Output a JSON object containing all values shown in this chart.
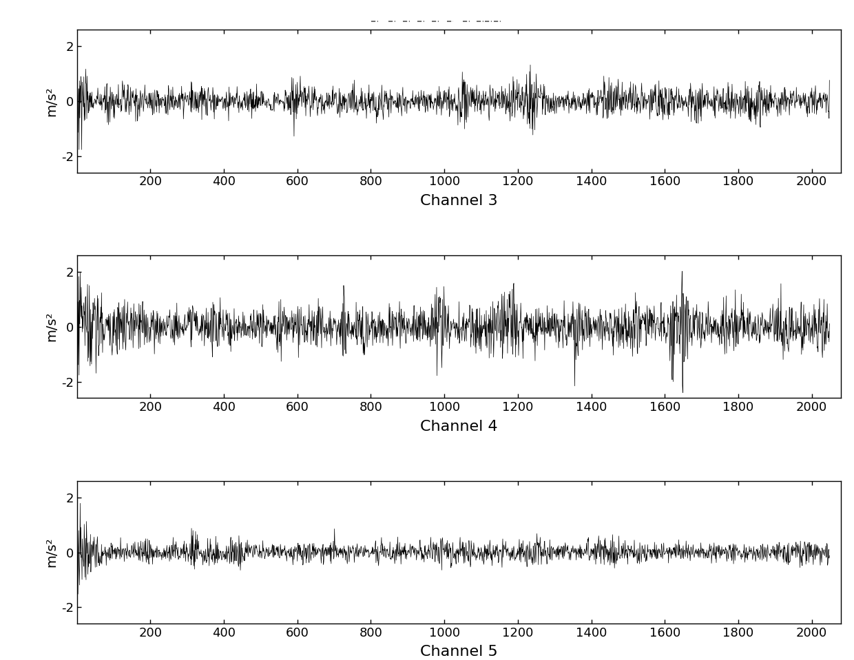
{
  "n_points": 2048,
  "channels": [
    "Channel 3",
    "Channel 4",
    "Channel 5"
  ],
  "ylabel": "m/s²",
  "xlim": [
    0,
    2080
  ],
  "ylim": [
    -2.6,
    2.6
  ],
  "yticks": [
    -2,
    0,
    2
  ],
  "xticks": [
    200,
    400,
    600,
    800,
    1000,
    1200,
    1400,
    1600,
    1800,
    2000
  ],
  "line_color": "#000000",
  "line_width": 0.5,
  "bg_color": "#ffffff",
  "ch3_seed": 10,
  "ch4_seed": 20,
  "ch5_seed": 30,
  "title_fontsize": 16,
  "label_fontsize": 14,
  "tick_fontsize": 13,
  "xlabel_fontsize": 16
}
